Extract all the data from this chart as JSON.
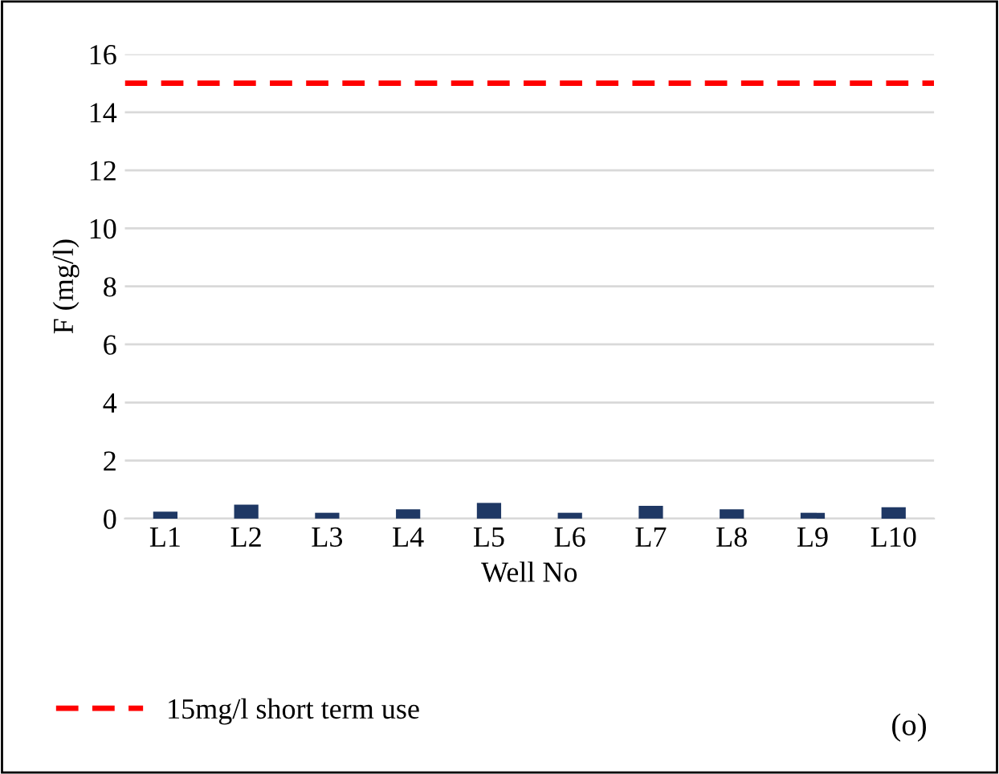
{
  "chart_data": {
    "type": "bar",
    "xlabel": "Well No",
    "ylabel": "F (mg/l)",
    "categories": [
      "L1",
      "L2",
      "L3",
      "L4",
      "L5",
      "L6",
      "L7",
      "L8",
      "L9",
      "L10"
    ],
    "values": [
      0.24,
      0.48,
      0.2,
      0.32,
      0.54,
      0.2,
      0.44,
      0.32,
      0.2,
      0.39
    ],
    "color": "#1f3864",
    "ylim": [
      0,
      16
    ],
    "yticks": [
      0,
      2,
      4,
      6,
      8,
      10,
      12,
      14,
      16
    ],
    "grid": "y",
    "legend": "bottom",
    "ref_lines": [
      {
        "axis": "y",
        "value": 15,
        "label": "15mg/l short term use",
        "color": "#ff0000",
        "line_style": "dashed"
      }
    ],
    "annotations": [
      "(o)"
    ]
  }
}
